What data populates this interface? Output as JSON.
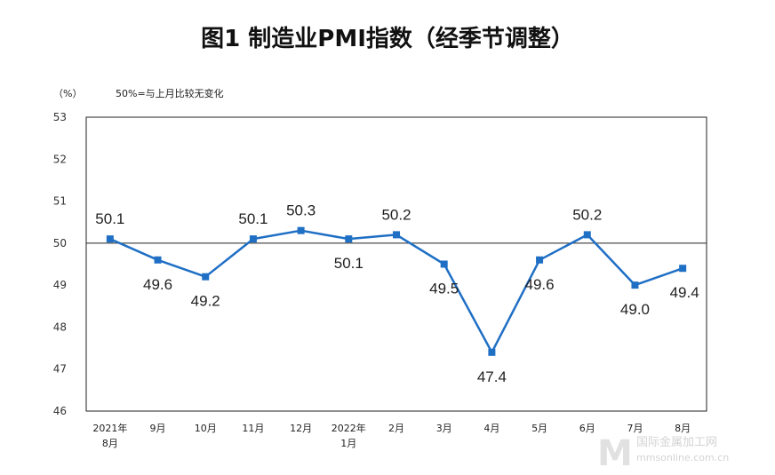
{
  "chart_data": {
    "type": "line",
    "title": "图1  制造业PMI指数（经季节调整）",
    "ylabel": "（%）",
    "annotation": "50%=与上月比较无变化",
    "categories": [
      [
        "2021年",
        "8月"
      ],
      [
        "9月"
      ],
      [
        "10月"
      ],
      [
        "11月"
      ],
      [
        "12月"
      ],
      [
        "2022年",
        "1月"
      ],
      [
        "2月"
      ],
      [
        "3月"
      ],
      [
        "4月"
      ],
      [
        "5月"
      ],
      [
        "6月"
      ],
      [
        "7月"
      ],
      [
        "8月"
      ]
    ],
    "series": [
      {
        "values": [
          50.1,
          49.6,
          49.2,
          50.1,
          50.3,
          50.1,
          50.2,
          49.5,
          47.4,
          49.6,
          50.2,
          49.0,
          49.4
        ]
      }
    ],
    "data_labels": [
      "50.1",
      "49.6",
      "49.2",
      "50.1",
      "50.3",
      "50.1",
      "50.2",
      "49.5",
      "47.4",
      "49.6",
      "50.2",
      "49.0",
      "49.4"
    ],
    "ylim": [
      46,
      53
    ],
    "yticks": [
      "46",
      "47",
      "48",
      "49",
      "50",
      "51",
      "52",
      "53"
    ],
    "reference_line": 50,
    "line_color": "#1f6fc5",
    "grid": false
  },
  "watermark": {
    "logo": "M",
    "line1": "国际金属加工网",
    "line2": "mmsonline.com.cn"
  }
}
